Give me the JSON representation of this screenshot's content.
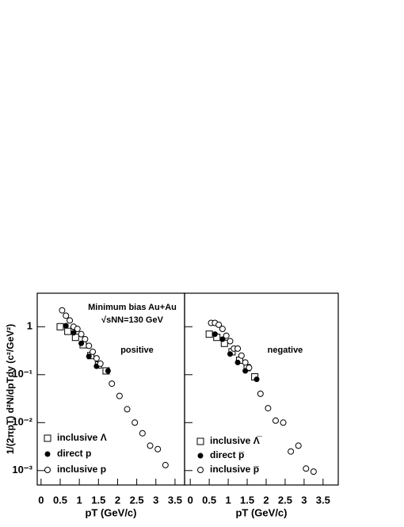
{
  "chart_data": [
    {
      "type": "scatter",
      "ylog": true,
      "y_label": "1/(2πpT) d²N/dpTdy (c²/GeV²)",
      "x_label": "pT (GeV/c)",
      "annotations": [
        "Minimum bias Au+Au",
        "√sNN=130 GeV",
        "positive"
      ],
      "xlim": [
        -0.1,
        3.75
      ],
      "ylim": [
        0.0005,
        5
      ],
      "xticks": [
        0,
        0.5,
        1,
        1.5,
        2,
        2.5,
        3,
        3.5
      ],
      "yticks": [
        {
          "value": 0.001,
          "label": "10⁻³"
        },
        {
          "value": 0.01,
          "label": "10⁻²"
        },
        {
          "value": 0.1,
          "label": "10⁻¹"
        },
        1
      ],
      "ytick_labels": true,
      "series": [
        {
          "name": "inclusive Λ",
          "marker": "open-square",
          "color": "#000000",
          "x": [
            0.5,
            0.7,
            0.9,
            1.1,
            1.3,
            1.5,
            1.7
          ],
          "values": [
            1.0,
            0.8,
            0.6,
            0.42,
            0.25,
            0.16,
            0.12
          ]
        },
        {
          "name": "direct p",
          "marker": "filled-circle",
          "color": "#000000",
          "x": [
            0.65,
            0.85,
            1.05,
            1.25,
            1.45,
            1.75
          ],
          "values": [
            1.05,
            0.75,
            0.45,
            0.24,
            0.15,
            0.12
          ]
        },
        {
          "name": "inclusive p",
          "marker": "open-circle",
          "color": "#000000",
          "x": [
            0.55,
            0.65,
            0.75,
            0.85,
            0.95,
            1.05,
            1.15,
            1.25,
            1.35,
            1.45,
            1.55,
            1.85,
            2.05,
            2.25,
            2.45,
            2.65,
            2.85,
            3.05,
            3.25
          ],
          "values": [
            2.2,
            1.7,
            1.35,
            1.0,
            0.9,
            0.7,
            0.55,
            0.4,
            0.3,
            0.22,
            0.17,
            0.065,
            0.036,
            0.019,
            0.01,
            0.006,
            0.0033,
            0.0028,
            0.0013
          ]
        }
      ]
    },
    {
      "type": "scatter",
      "ylog": true,
      "x_label": "pT (GeV/c)",
      "annotations": [
        "negative"
      ],
      "xlim": [
        -0.15,
        3.9
      ],
      "ylim": [
        0.0005,
        5
      ],
      "xticks": [
        0,
        0.5,
        1,
        1.5,
        2,
        2.5,
        3,
        3.5
      ],
      "yticks": [
        0.001,
        0.01,
        0.1,
        1
      ],
      "ytick_labels": false,
      "series": [
        {
          "name": "inclusive Λ̅",
          "marker": "open-square",
          "color": "#000000",
          "x": [
            0.5,
            0.7,
            0.9,
            1.1,
            1.3,
            1.5,
            1.7
          ],
          "values": [
            0.7,
            0.6,
            0.45,
            0.3,
            0.2,
            0.14,
            0.09
          ]
        },
        {
          "name": "direct p̅",
          "marker": "filled-circle",
          "color": "#000000",
          "x": [
            0.65,
            0.85,
            1.05,
            1.25,
            1.45,
            1.75
          ],
          "values": [
            0.7,
            0.55,
            0.27,
            0.18,
            0.12,
            0.08
          ]
        },
        {
          "name": "inclusive p̅",
          "marker": "open-circle",
          "color": "#000000",
          "x": [
            0.55,
            0.65,
            0.75,
            0.85,
            0.95,
            1.05,
            1.15,
            1.25,
            1.35,
            1.45,
            1.55,
            1.85,
            2.05,
            2.25,
            2.45,
            2.65,
            2.85,
            3.05,
            3.25
          ],
          "values": [
            1.2,
            1.2,
            1.1,
            0.9,
            0.65,
            0.5,
            0.35,
            0.35,
            0.25,
            0.18,
            0.14,
            0.04,
            0.02,
            0.011,
            0.01,
            0.0025,
            0.0033,
            0.0011,
            0.00095
          ]
        }
      ]
    }
  ]
}
